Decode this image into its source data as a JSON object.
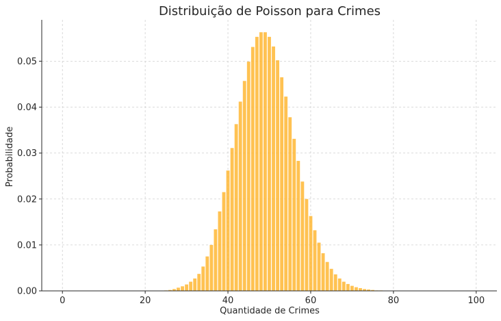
{
  "chart_data": {
    "type": "bar",
    "title": "Distribuição de Poisson para Crimes",
    "xlabel": "Quantidade de Crimes",
    "ylabel": "Probabilidade",
    "xlim": [
      -5,
      105
    ],
    "ylim": [
      0,
      0.059
    ],
    "xticks": [
      0,
      20,
      40,
      60,
      80,
      100
    ],
    "xtick_labels": [
      "0",
      "20",
      "40",
      "60",
      "80",
      "100"
    ],
    "yticks": [
      0,
      0.01,
      0.02,
      0.03,
      0.04,
      0.05
    ],
    "ytick_labels": [
      "0.00",
      "0.01",
      "0.02",
      "0.03",
      "0.04",
      "0.05"
    ],
    "grid": true,
    "bar_color": "#FFB734",
    "x": [
      25,
      26,
      27,
      28,
      29,
      30,
      31,
      32,
      33,
      34,
      35,
      36,
      37,
      38,
      39,
      40,
      41,
      42,
      43,
      44,
      45,
      46,
      47,
      48,
      49,
      50,
      51,
      52,
      53,
      54,
      55,
      56,
      57,
      58,
      59,
      60,
      61,
      62,
      63,
      64,
      65,
      66,
      67,
      68,
      69,
      70,
      71,
      72,
      73,
      74,
      75,
      76,
      77,
      78,
      79,
      80
    ],
    "values": [
      0.0001,
      0.0002,
      0.0004,
      0.0007,
      0.001,
      0.0014,
      0.002,
      0.0027,
      0.0037,
      0.0053,
      0.0075,
      0.01,
      0.0134,
      0.0173,
      0.0215,
      0.0262,
      0.0311,
      0.0363,
      0.0412,
      0.0457,
      0.0499,
      0.0531,
      0.0553,
      0.0563,
      0.0563,
      0.0553,
      0.0532,
      0.0502,
      0.0465,
      0.0423,
      0.0378,
      0.0331,
      0.0283,
      0.0238,
      0.02,
      0.0163,
      0.0132,
      0.0105,
      0.0082,
      0.0063,
      0.0048,
      0.0036,
      0.0027,
      0.002,
      0.0015,
      0.0011,
      0.0008,
      0.0006,
      0.0004,
      0.0003,
      0.0002,
      0.0001,
      0.0001,
      0.0,
      0.0,
      0.0
    ]
  }
}
